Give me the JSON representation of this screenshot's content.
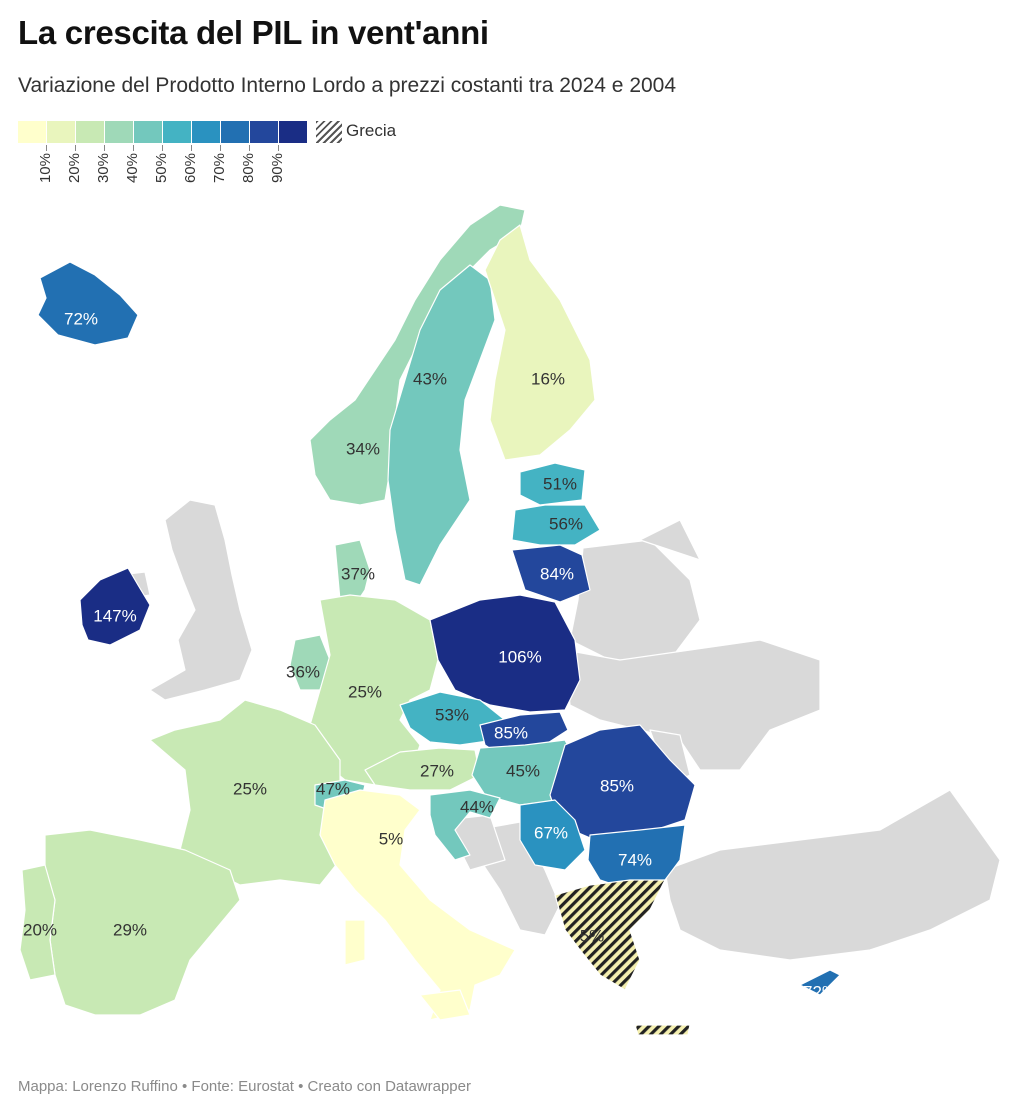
{
  "title": "La crescita del PIL in vent'anni",
  "subtitle": "Variazione del Prodotto Interno Lordo a prezzi costanti tra 2024 e 2004",
  "legend": {
    "ticks": [
      "10%",
      "20%",
      "30%",
      "40%",
      "50%",
      "60%",
      "70%",
      "80%",
      "90%"
    ],
    "colors": [
      "#ffffcc",
      "#e9f5bd",
      "#c8e9b4",
      "#9fd9b8",
      "#73c8bd",
      "#44b3c3",
      "#2a92c0",
      "#2270b2",
      "#23479c",
      "#1a2d85"
    ],
    "hatch_label": "Grecia"
  },
  "footer": "Mappa: Lorenzo Ruffino • Fonte: Eurostat • Creato con Datawrapper",
  "countries": [
    {
      "name": "Iceland",
      "value": 72,
      "label": "72%"
    },
    {
      "name": "Norway",
      "value": 34,
      "label": "34%"
    },
    {
      "name": "Sweden",
      "value": 43,
      "label": "43%"
    },
    {
      "name": "Finland",
      "value": 16,
      "label": "16%"
    },
    {
      "name": "Estonia",
      "value": 51,
      "label": "51%"
    },
    {
      "name": "Latvia",
      "value": 56,
      "label": "56%"
    },
    {
      "name": "Lithuania",
      "value": 84,
      "label": "84%"
    },
    {
      "name": "Denmark",
      "value": 37,
      "label": "37%"
    },
    {
      "name": "Ireland",
      "value": 147,
      "label": "147%"
    },
    {
      "name": "Netherlands",
      "value": 36,
      "label": "36%"
    },
    {
      "name": "Germany",
      "value": 25,
      "label": "25%"
    },
    {
      "name": "Poland",
      "value": 106,
      "label": "106%"
    },
    {
      "name": "Czechia",
      "value": 53,
      "label": "53%"
    },
    {
      "name": "Slovakia",
      "value": 85,
      "label": "85%"
    },
    {
      "name": "Austria",
      "value": 27,
      "label": "27%"
    },
    {
      "name": "Hungary",
      "value": 45,
      "label": "45%"
    },
    {
      "name": "Romania",
      "value": 85,
      "label": "85%"
    },
    {
      "name": "France",
      "value": 25,
      "label": "25%"
    },
    {
      "name": "Switzerland",
      "value": 47,
      "label": "47%"
    },
    {
      "name": "Slovenia/Croatia",
      "value": 44,
      "label": "44%"
    },
    {
      "name": "Serbia",
      "value": 67,
      "label": "67%"
    },
    {
      "name": "Bulgaria",
      "value": 74,
      "label": "74%"
    },
    {
      "name": "Italy",
      "value": 5,
      "label": "5%"
    },
    {
      "name": "Greece",
      "value": 5,
      "label": "5%"
    },
    {
      "name": "Spain",
      "value": 29,
      "label": "29%"
    },
    {
      "name": "Portugal",
      "value": 20,
      "label": "20%"
    },
    {
      "name": "Cyprus",
      "value": 72,
      "label": "72%"
    }
  ],
  "no_data_color": "#d9d9d9"
}
